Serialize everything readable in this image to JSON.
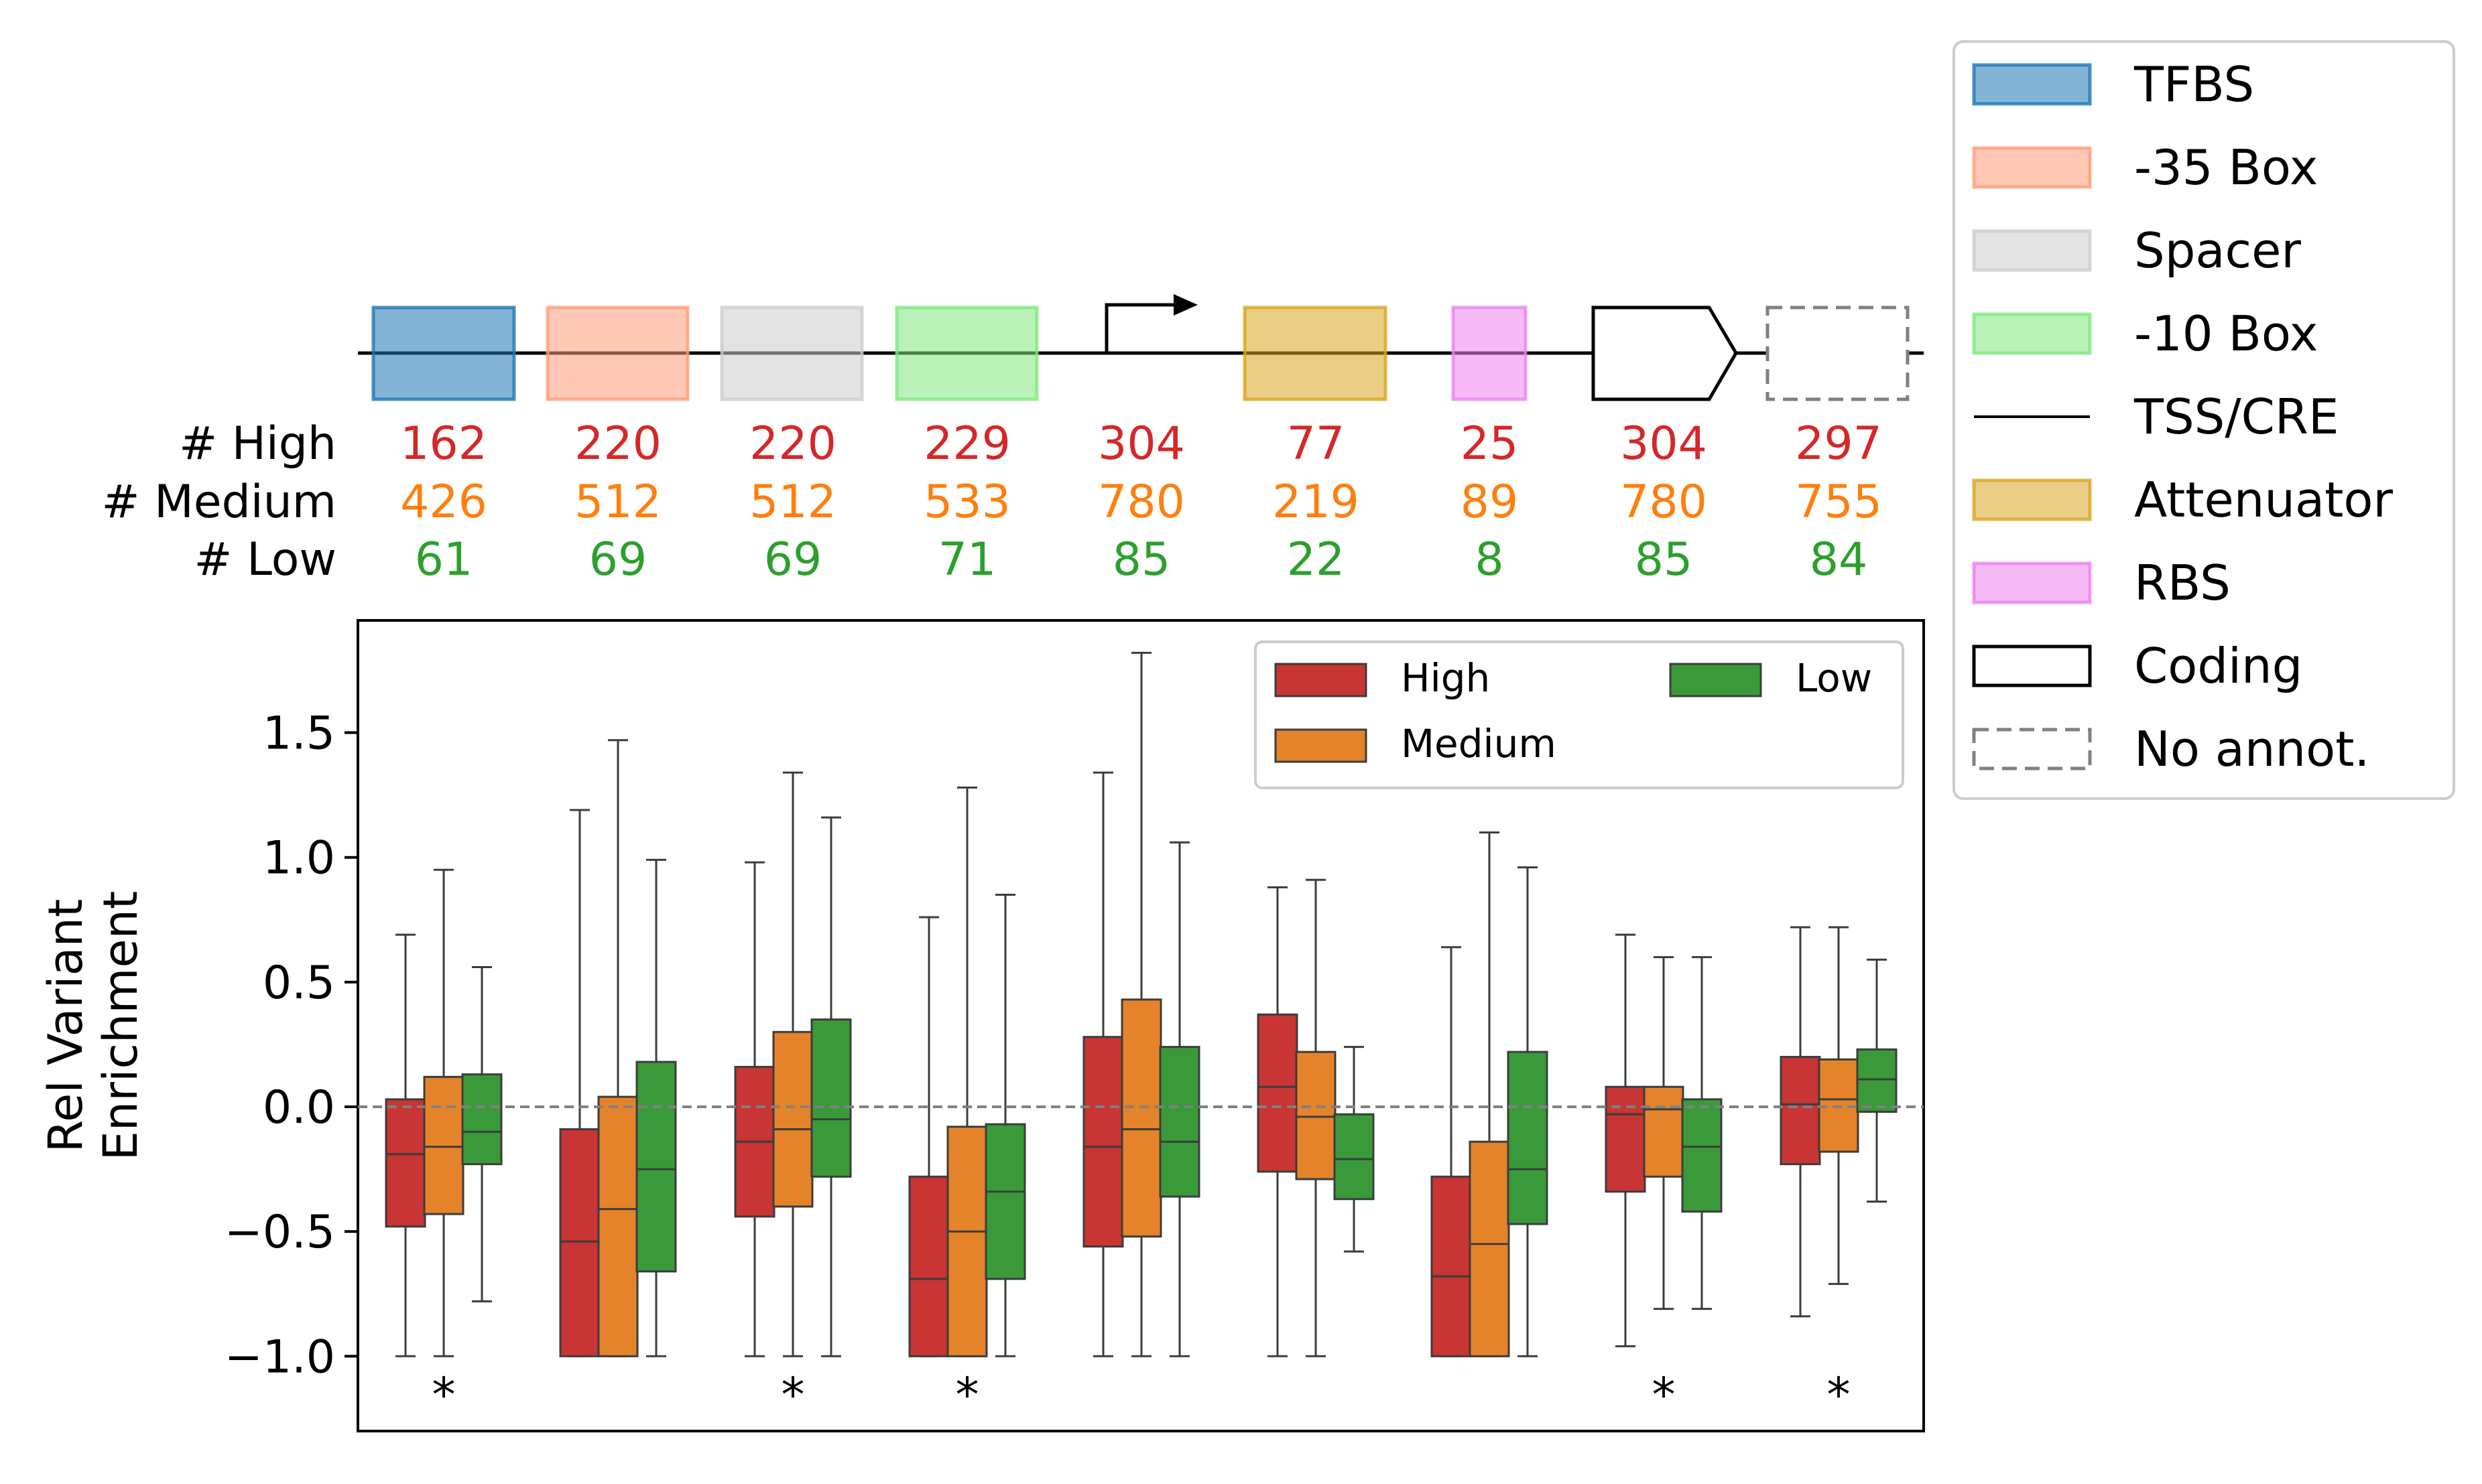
{
  "colors": {
    "high": "#d62728",
    "medium": "#ff7f0e",
    "low": "#2ca02c",
    "box_high": "#c93434",
    "box_medium": "#e5832a",
    "box_low": "#3a9a3a"
  },
  "regions": [
    {
      "label": "TFBS",
      "fill": "#1f77b4"
    },
    {
      "label": "-35 Box",
      "fill": "#ff9d7a"
    },
    {
      "label": "Spacer",
      "fill": "#cccccc"
    },
    {
      "label": "-10 Box",
      "fill": "#7ee87e"
    },
    {
      "label": "TSS/CRE",
      "fill": "none"
    },
    {
      "label": "Attenuator",
      "fill": "#daa520"
    },
    {
      "label": "RBS",
      "fill": "#ee82ee"
    },
    {
      "label": "Coding",
      "fill": "none"
    },
    {
      "label": "No annot.",
      "fill": "none"
    }
  ],
  "counts": {
    "row_labels": [
      "# High",
      "# Medium",
      "# Low"
    ],
    "high": [
      "162",
      "220",
      "220",
      "229",
      "304",
      "77",
      "25",
      "304",
      "297"
    ],
    "medium": [
      "426",
      "512",
      "512",
      "533",
      "780",
      "219",
      "89",
      "780",
      "755"
    ],
    "low": [
      "61",
      "69",
      "69",
      "71",
      "85",
      "22",
      "8",
      "85",
      "84"
    ]
  },
  "chart_data": {
    "type": "box",
    "ylabel_lines": [
      "Rel Variant",
      "Enrichment"
    ],
    "ylim": [
      -1.3,
      1.95
    ],
    "yticks": [
      -1.0,
      -0.5,
      0.0,
      0.5,
      1.0,
      1.5
    ],
    "ytick_labels": [
      "−1.0",
      "−0.5",
      "0.0",
      "0.5",
      "1.0",
      "1.5"
    ],
    "reference_line": 0.0,
    "legend": {
      "position": "upper-right",
      "entries": [
        "High",
        "Medium",
        "Low"
      ]
    },
    "significance_marker": "*",
    "groups": [
      {
        "region": "TFBS",
        "significant": true,
        "boxes": [
          {
            "series": "High",
            "whislo": -1.0,
            "q1": -0.48,
            "med": -0.19,
            "q3": 0.03,
            "whishi": 0.69
          },
          {
            "series": "Medium",
            "whislo": -1.0,
            "q1": -0.43,
            "med": -0.16,
            "q3": 0.12,
            "whishi": 0.95
          },
          {
            "series": "Low",
            "whislo": -0.78,
            "q1": -0.23,
            "med": -0.1,
            "q3": 0.13,
            "whishi": 0.56
          }
        ]
      },
      {
        "region": "-35 Box",
        "significant": false,
        "boxes": [
          {
            "series": "High",
            "whislo": -1.0,
            "q1": -1.0,
            "med": -0.54,
            "q3": -0.09,
            "whishi": 1.19
          },
          {
            "series": "Medium",
            "whislo": -1.0,
            "q1": -1.0,
            "med": -0.41,
            "q3": 0.04,
            "whishi": 1.47
          },
          {
            "series": "Low",
            "whislo": -1.0,
            "q1": -0.66,
            "med": -0.25,
            "q3": 0.18,
            "whishi": 0.99
          }
        ]
      },
      {
        "region": "Spacer",
        "significant": true,
        "boxes": [
          {
            "series": "High",
            "whislo": -1.0,
            "q1": -0.44,
            "med": -0.14,
            "q3": 0.16,
            "whishi": 0.98
          },
          {
            "series": "Medium",
            "whislo": -1.0,
            "q1": -0.4,
            "med": -0.09,
            "q3": 0.3,
            "whishi": 1.34
          },
          {
            "series": "Low",
            "whislo": -1.0,
            "q1": -0.28,
            "med": -0.05,
            "q3": 0.35,
            "whishi": 1.16
          }
        ]
      },
      {
        "region": "-10 Box",
        "significant": true,
        "boxes": [
          {
            "series": "High",
            "whislo": -1.0,
            "q1": -1.0,
            "med": -0.69,
            "q3": -0.28,
            "whishi": 0.76
          },
          {
            "series": "Medium",
            "whislo": -1.0,
            "q1": -1.0,
            "med": -0.5,
            "q3": -0.08,
            "whishi": 1.28
          },
          {
            "series": "Low",
            "whislo": -1.0,
            "q1": -0.69,
            "med": -0.34,
            "q3": -0.07,
            "whishi": 0.85
          }
        ]
      },
      {
        "region": "TSS/CRE",
        "significant": false,
        "boxes": [
          {
            "series": "High",
            "whislo": -1.0,
            "q1": -0.56,
            "med": -0.16,
            "q3": 0.28,
            "whishi": 1.34
          },
          {
            "series": "Medium",
            "whislo": -1.0,
            "q1": -0.52,
            "med": -0.09,
            "q3": 0.43,
            "whishi": 1.82
          },
          {
            "series": "Low",
            "whislo": -1.0,
            "q1": -0.36,
            "med": -0.14,
            "q3": 0.24,
            "whishi": 1.06
          }
        ]
      },
      {
        "region": "Attenuator",
        "significant": false,
        "boxes": [
          {
            "series": "High",
            "whislo": -1.0,
            "q1": -0.26,
            "med": 0.08,
            "q3": 0.37,
            "whishi": 0.88
          },
          {
            "series": "Medium",
            "whislo": -1.0,
            "q1": -0.29,
            "med": -0.04,
            "q3": 0.22,
            "whishi": 0.91
          },
          {
            "series": "Low",
            "whislo": -0.58,
            "q1": -0.37,
            "med": -0.21,
            "q3": -0.03,
            "whishi": 0.24
          }
        ]
      },
      {
        "region": "RBS",
        "significant": false,
        "boxes": [
          {
            "series": "High",
            "whislo": -1.0,
            "q1": -1.0,
            "med": -0.68,
            "q3": -0.28,
            "whishi": 0.64
          },
          {
            "series": "Medium",
            "whislo": -1.0,
            "q1": -1.0,
            "med": -0.55,
            "q3": -0.14,
            "whishi": 1.1
          },
          {
            "series": "Low",
            "whislo": -1.0,
            "q1": -0.47,
            "med": -0.25,
            "q3": 0.22,
            "whishi": 0.96
          }
        ]
      },
      {
        "region": "Coding",
        "significant": true,
        "boxes": [
          {
            "series": "High",
            "whislo": -0.96,
            "q1": -0.34,
            "med": -0.03,
            "q3": 0.08,
            "whishi": 0.69
          },
          {
            "series": "Medium",
            "whislo": -0.81,
            "q1": -0.28,
            "med": -0.01,
            "q3": 0.08,
            "whishi": 0.6
          },
          {
            "series": "Low",
            "whislo": -0.81,
            "q1": -0.42,
            "med": -0.16,
            "q3": 0.03,
            "whishi": 0.6
          }
        ]
      },
      {
        "region": "No annot.",
        "significant": true,
        "boxes": [
          {
            "series": "High",
            "whislo": -0.84,
            "q1": -0.23,
            "med": 0.01,
            "q3": 0.2,
            "whishi": 0.72
          },
          {
            "series": "Medium",
            "whislo": -0.71,
            "q1": -0.18,
            "med": 0.03,
            "q3": 0.19,
            "whishi": 0.72
          },
          {
            "series": "Low",
            "whislo": -0.38,
            "q1": -0.02,
            "med": 0.11,
            "q3": 0.23,
            "whishi": 0.59
          }
        ]
      }
    ]
  }
}
